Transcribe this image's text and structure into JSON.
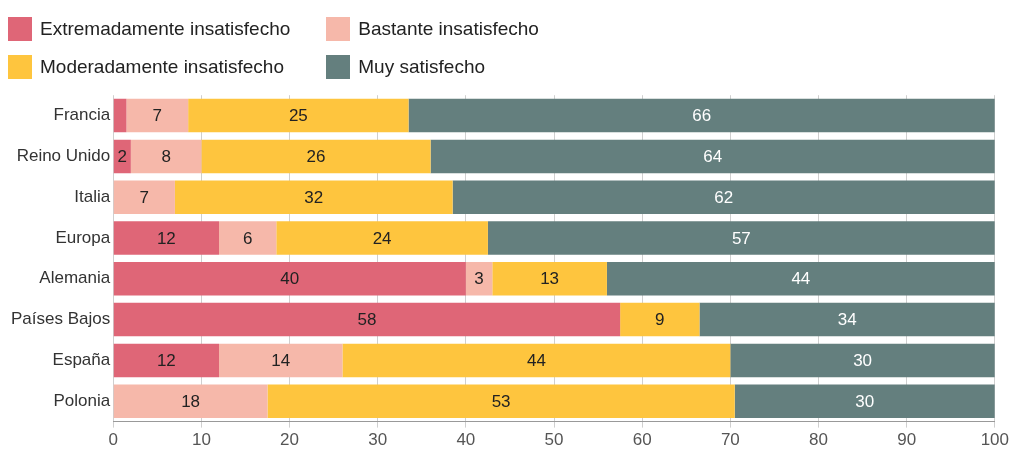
{
  "chart_data": {
    "type": "bar",
    "orientation": "horizontal",
    "stacked": true,
    "categories": [
      "Francia",
      "Reino Unido",
      "Italia",
      "Europa",
      "Alemania",
      "Países Bajos",
      "España",
      "Polonia"
    ],
    "series": [
      {
        "name": "Extremadamente insatisfecho",
        "color": "#df6677",
        "values": [
          1.5,
          2,
          null,
          12,
          40,
          57.5,
          12,
          null
        ],
        "value_labels": [
          null,
          "2",
          null,
          "12",
          "40",
          "58",
          "12",
          null
        ]
      },
      {
        "name": "Bastante insatisfecho",
        "color": "#f6b8aa",
        "values": [
          7,
          8,
          7,
          6.5,
          3,
          null,
          14,
          17.5
        ],
        "value_labels": [
          "7",
          "8",
          "7",
          "6",
          "3",
          null,
          "14",
          "18"
        ]
      },
      {
        "name": "Moderadamente insatisfecho",
        "color": "#fec53e",
        "values": [
          25,
          26,
          31.5,
          24,
          13,
          9,
          44,
          53
        ],
        "value_labels": [
          "25",
          "26",
          "32",
          "24",
          "13",
          "9",
          "44",
          "53"
        ]
      },
      {
        "name": "Muy satisfecho",
        "color": "#647f7e",
        "values": [
          66.5,
          64,
          61.5,
          57.5,
          44,
          33.5,
          30,
          29.5
        ],
        "value_labels": [
          "66",
          "64",
          "62",
          "57",
          "44",
          "34",
          "30",
          "30"
        ]
      }
    ],
    "xlim": [
      0,
      100
    ],
    "xticks": [
      0,
      10,
      20,
      30,
      40,
      50,
      60,
      70,
      80,
      90,
      100
    ],
    "grid": "x",
    "legend": "top left"
  }
}
